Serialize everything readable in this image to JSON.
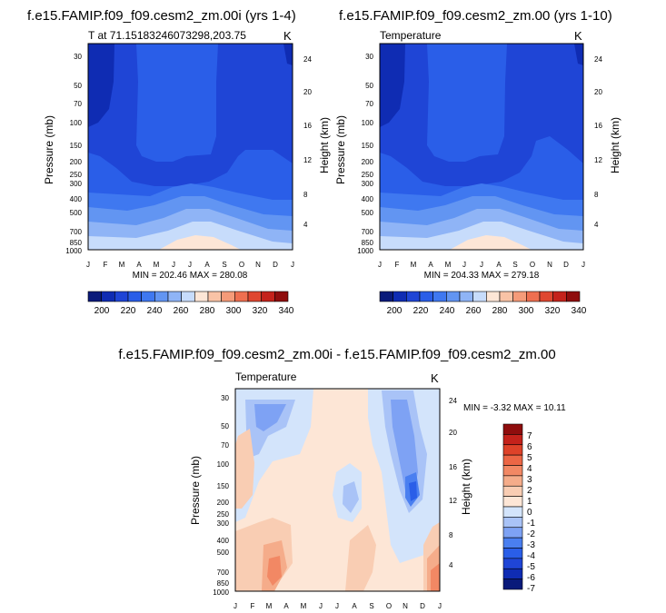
{
  "chart_data": [
    {
      "type": "contour",
      "title": "f.e15.FAMIP.f09_f09.cesm2_zm.00i (yrs 1-4)",
      "subtitle_left": "T at 71.15183246073298,203.75",
      "subtitle_right": "K",
      "ylabel_left": "Pressure (mb)",
      "ylabel_right": "Height (km)",
      "x_ticks": [
        "J",
        "F",
        "M",
        "A",
        "M",
        "J",
        "J",
        "A",
        "S",
        "O",
        "N",
        "D",
        "J"
      ],
      "pressure_ticks": [
        "30",
        "50",
        "70",
        "100",
        "150",
        "200",
        "250",
        "300",
        "400",
        "500",
        "700",
        "850",
        "1000"
      ],
      "height_ticks": [
        "24",
        "20",
        "16",
        "12",
        "8",
        "4"
      ],
      "stats": "MIN = 202.46 MAX = 280.08",
      "min": 202.46,
      "max": 280.08,
      "colorbar_labels": [
        "200",
        "220",
        "240",
        "260",
        "280",
        "300",
        "320",
        "340"
      ]
    },
    {
      "type": "contour",
      "title": "f.e15.FAMIP.f09_f09.cesm2_zm.00 (yrs 1-10)",
      "subtitle_left": "Temperature",
      "subtitle_right": "K",
      "ylabel_left": "Pressure (mb)",
      "ylabel_right": "Height (km)",
      "x_ticks": [
        "J",
        "F",
        "M",
        "A",
        "M",
        "J",
        "J",
        "A",
        "S",
        "O",
        "N",
        "D",
        "J"
      ],
      "pressure_ticks": [
        "30",
        "50",
        "70",
        "100",
        "150",
        "200",
        "250",
        "300",
        "400",
        "500",
        "700",
        "850",
        "1000"
      ],
      "height_ticks": [
        "24",
        "20",
        "16",
        "12",
        "8",
        "4"
      ],
      "stats": "MIN = 204.33 MAX = 279.18",
      "min": 204.33,
      "max": 279.18,
      "colorbar_labels": [
        "200",
        "220",
        "240",
        "260",
        "280",
        "300",
        "320",
        "340"
      ]
    },
    {
      "type": "contour",
      "title": "f.e15.FAMIP.f09_f09.cesm2_zm.00i - f.e15.FAMIP.f09_f09.cesm2_zm.00",
      "subtitle_left": "Temperature",
      "subtitle_right": "K",
      "ylabel_left": "Pressure (mb)",
      "ylabel_right": "Height (km)",
      "x_ticks": [
        "J",
        "F",
        "M",
        "A",
        "M",
        "J",
        "J",
        "A",
        "S",
        "O",
        "N",
        "D",
        "J"
      ],
      "pressure_ticks": [
        "30",
        "50",
        "70",
        "100",
        "150",
        "200",
        "250",
        "300",
        "400",
        "500",
        "700",
        "850",
        "1000"
      ],
      "height_ticks": [
        "24",
        "20",
        "16",
        "12",
        "8",
        "4"
      ],
      "stats": "MIN = -3.32 MAX = 10.11",
      "min": -3.32,
      "max": 10.11,
      "colorbar_labels": [
        "7",
        "6",
        "5",
        "4",
        "3",
        "2",
        "1",
        "0",
        "-1",
        "-2",
        "-3",
        "-4",
        "-5",
        "-6",
        "-7"
      ]
    }
  ],
  "colors": {
    "abs_levels": [
      "#0a1a7a",
      "#0f2cb3",
      "#1f45d6",
      "#2a5ee8",
      "#3f78f0",
      "#6295f2",
      "#8fb4f6",
      "#c7dcfb",
      "#fde6d6",
      "#f9c3a6",
      "#f59b79",
      "#ee6f50",
      "#df4730",
      "#c4221b",
      "#8f0d0d"
    ],
    "diff_levels": [
      "#0a1a7a",
      "#0f2cb3",
      "#1f45d6",
      "#2a5ee8",
      "#4a7ff0",
      "#7ea2f4",
      "#a9c3f7",
      "#d3e4fb",
      "#fde6d6",
      "#f9cdb3",
      "#f5ac8a",
      "#f28864",
      "#ec6645",
      "#de4229",
      "#c4221b",
      "#8f0d0d"
    ]
  }
}
